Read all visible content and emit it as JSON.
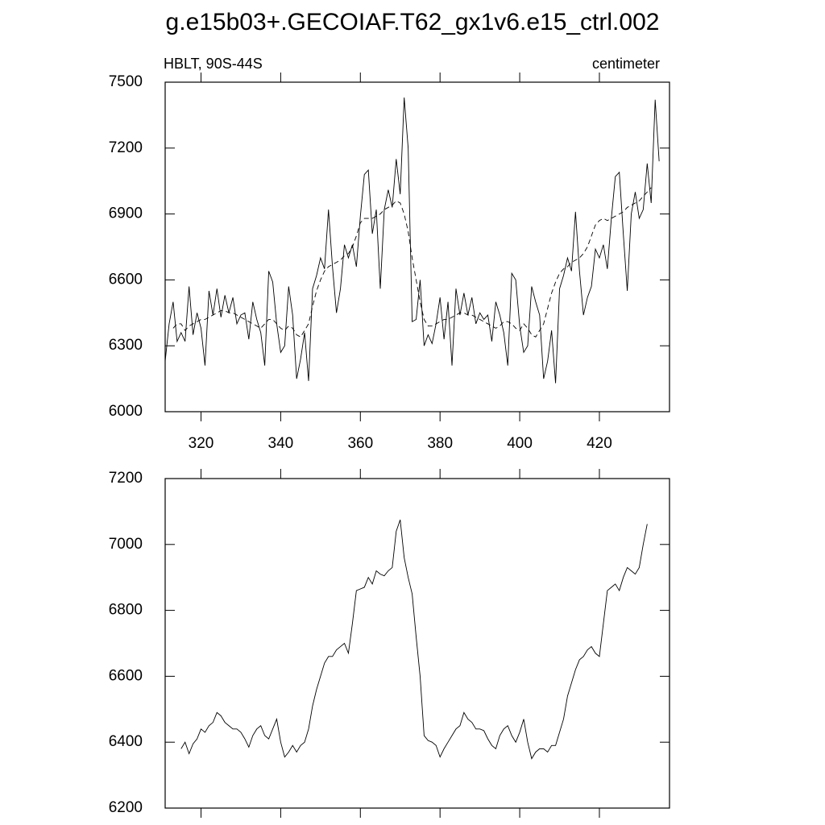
{
  "chart_data": [
    {
      "type": "line",
      "title": "g.e15b03+.GECOIAF.T62_gx1v6.e15_ctrl.002",
      "left_string": "HBLT, 90S-44S",
      "right_string": "centimeter",
      "x": [
        311,
        312,
        313,
        314,
        315,
        316,
        317,
        318,
        319,
        320,
        321,
        322,
        323,
        324,
        325,
        326,
        327,
        328,
        329,
        330,
        331,
        332,
        333,
        334,
        335,
        336,
        337,
        338,
        339,
        340,
        341,
        342,
        343,
        344,
        345,
        346,
        347,
        348,
        349,
        350,
        351,
        352,
        353,
        354,
        355,
        356,
        357,
        358,
        359,
        360,
        361,
        362,
        363,
        364,
        365,
        366,
        367,
        368,
        369,
        370,
        371,
        372,
        373,
        374,
        375,
        376,
        377,
        378,
        379,
        380,
        381,
        382,
        383,
        384,
        385,
        386,
        387,
        388,
        389,
        390,
        391,
        392,
        393,
        394,
        395,
        396,
        397,
        398,
        399,
        400,
        401,
        402,
        403,
        404,
        405,
        406,
        407,
        408,
        409,
        410,
        411,
        412,
        413,
        414,
        415,
        416,
        417,
        418,
        419,
        420,
        421,
        422,
        423,
        424,
        425,
        426,
        427,
        428,
        429,
        430,
        431,
        432,
        433,
        434,
        435
      ],
      "series": [
        {
          "color": "#000000",
          "dashed": false,
          "values": [
            6230,
            6400,
            6500,
            6320,
            6360,
            6320,
            6570,
            6350,
            6450,
            6380,
            6210,
            6550,
            6440,
            6560,
            6430,
            6530,
            6450,
            6520,
            6400,
            6440,
            6450,
            6330,
            6500,
            6420,
            6360,
            6210,
            6640,
            6590,
            6400,
            6270,
            6300,
            6570,
            6440,
            6150,
            6240,
            6360,
            6140,
            6560,
            6620,
            6700,
            6650,
            6920,
            6660,
            6450,
            6560,
            6760,
            6700,
            6760,
            6660,
            6890,
            7080,
            7100,
            6810,
            6920,
            6560,
            6920,
            7010,
            6930,
            7150,
            6990,
            7430,
            7200,
            6410,
            6420,
            6600,
            6300,
            6350,
            6310,
            6400,
            6520,
            6330,
            6500,
            6210,
            6560,
            6440,
            6540,
            6440,
            6520,
            6400,
            6450,
            6420,
            6440,
            6320,
            6500,
            6440,
            6360,
            6210,
            6630,
            6600,
            6390,
            6270,
            6300,
            6570,
            6500,
            6440,
            6150,
            6230,
            6370,
            6130,
            6560,
            6620,
            6700,
            6640,
            6910,
            6640,
            6440,
            6520,
            6570,
            6740,
            6700,
            6760,
            6650,
            6880,
            7070,
            7090,
            6810,
            6550,
            6900,
            7000,
            6880,
            6920,
            7130,
            6950,
            7420,
            7140
          ]
        },
        {
          "color": "#000000",
          "dashed": true,
          "values": [
            null,
            null,
            6380,
            6400,
            6400,
            6370,
            6390,
            6400,
            6410,
            6420,
            6420,
            6430,
            6440,
            6450,
            6460,
            6460,
            6450,
            6450,
            6440,
            6430,
            6420,
            6410,
            6400,
            6390,
            6380,
            6400,
            6420,
            6420,
            6400,
            6380,
            6370,
            6390,
            6380,
            6350,
            6340,
            6370,
            6400,
            6480,
            6550,
            6600,
            6640,
            6660,
            6670,
            6680,
            6690,
            6710,
            6720,
            6750,
            6800,
            6860,
            6880,
            6880,
            6880,
            6890,
            6900,
            6920,
            6930,
            6940,
            6960,
            6950,
            6900,
            6820,
            6700,
            6600,
            6500,
            6420,
            6390,
            6390,
            6400,
            6410,
            6420,
            6420,
            6430,
            6440,
            6450,
            6450,
            6440,
            6440,
            6430,
            6420,
            6410,
            6400,
            6390,
            6380,
            6390,
            6410,
            6410,
            6400,
            6380,
            6370,
            6400,
            6380,
            6350,
            6340,
            6370,
            6400,
            6470,
            6540,
            6590,
            6630,
            6650,
            6660,
            6680,
            6690,
            6700,
            6720,
            6750,
            6800,
            6850,
            6870,
            6880,
            6870,
            6880,
            6890,
            6900,
            6910,
            6930,
            6940,
            6950,
            6960,
            6980,
            7000,
            7020,
            null,
            null
          ]
        }
      ],
      "xlim": [
        311,
        437.6
      ],
      "xticks": [
        320,
        340,
        360,
        380,
        400,
        420
      ],
      "xtick_labels": true,
      "ylim": [
        6000,
        7500
      ],
      "yticks": [
        6000,
        6300,
        6600,
        6900,
        7200,
        7500
      ]
    },
    {
      "type": "line",
      "x": [
        311,
        312,
        313,
        314,
        315,
        316,
        317,
        318,
        319,
        320,
        321,
        322,
        323,
        324,
        325,
        326,
        327,
        328,
        329,
        330,
        331,
        332,
        333,
        334,
        335,
        336,
        337,
        338,
        339,
        340,
        341,
        342,
        343,
        344,
        345,
        346,
        347,
        348,
        349,
        350,
        351,
        352,
        353,
        354,
        355,
        356,
        357,
        358,
        359,
        360,
        361,
        362,
        363,
        364,
        365,
        366,
        367,
        368,
        369,
        370,
        371,
        372,
        373,
        374,
        375,
        376,
        377,
        378,
        379,
        380,
        381,
        382,
        383,
        384,
        385,
        386,
        387,
        388,
        389,
        390,
        391,
        392,
        393,
        394,
        395,
        396,
        397,
        398,
        399,
        400,
        401,
        402,
        403,
        404,
        405,
        406,
        407,
        408,
        409,
        410,
        411,
        412,
        413,
        414,
        415,
        416,
        417,
        418,
        419,
        420,
        421,
        422,
        423,
        424,
        425,
        426,
        427,
        428,
        429,
        430,
        431,
        432,
        433,
        434,
        435
      ],
      "series": [
        {
          "color": "#000000",
          "dashed": false,
          "values": [
            null,
            null,
            null,
            null,
            6380,
            6400,
            6365,
            6395,
            6410,
            6440,
            6430,
            6450,
            6460,
            6490,
            6480,
            6460,
            6450,
            6440,
            6440,
            6430,
            6410,
            6385,
            6420,
            6440,
            6450,
            6420,
            6410,
            6440,
            6470,
            6400,
            6355,
            6370,
            6390,
            6370,
            6390,
            6400,
            6440,
            6510,
            6560,
            6600,
            6640,
            6660,
            6660,
            6680,
            6690,
            6700,
            6670,
            6760,
            6860,
            6865,
            6870,
            6900,
            6880,
            6920,
            6910,
            6905,
            6920,
            6930,
            7040,
            7075,
            6960,
            6900,
            6850,
            6720,
            6600,
            6420,
            6405,
            6400,
            6390,
            6355,
            6380,
            6400,
            6420,
            6440,
            6450,
            6490,
            6470,
            6460,
            6440,
            6440,
            6435,
            6410,
            6390,
            6380,
            6420,
            6440,
            6450,
            6420,
            6400,
            6430,
            6470,
            6400,
            6350,
            6370,
            6380,
            6380,
            6370,
            6390,
            6390,
            6430,
            6470,
            6540,
            6580,
            6620,
            6650,
            6660,
            6680,
            6690,
            6670,
            6660,
            6760,
            6860,
            6870,
            6880,
            6860,
            6900,
            6930,
            6920,
            6910,
            6930,
            7000,
            7062,
            null,
            null,
            null
          ]
        }
      ],
      "xlim": [
        311,
        437.6
      ],
      "xticks": [
        320,
        340,
        360,
        380,
        400,
        420
      ],
      "xtick_labels": false,
      "ylim": [
        6200,
        7200
      ],
      "yticks": [
        6200,
        6400,
        6600,
        6800,
        7000,
        7200
      ]
    }
  ]
}
